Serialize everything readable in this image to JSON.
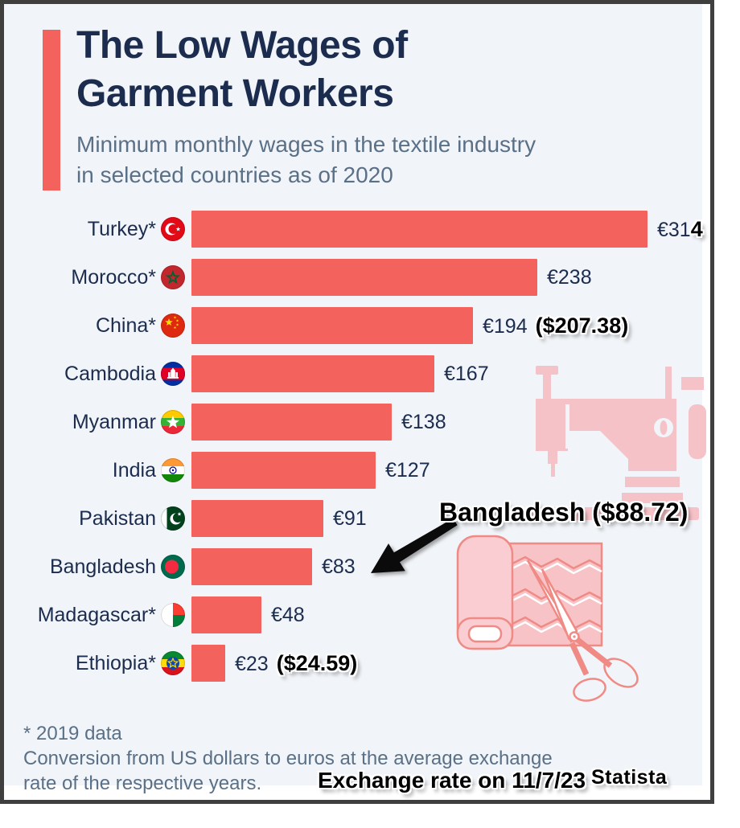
{
  "title": {
    "line1": "The Low Wages of",
    "line2": "Garment Workers"
  },
  "subtitle": {
    "line1": "Minimum monthly wages in the textile industry",
    "line2": "in selected countries as of 2020"
  },
  "chart_data": {
    "type": "bar",
    "orientation": "horizontal",
    "title": "The Low Wages of Garment Workers",
    "subtitle": "Minimum monthly wages in the textile industry in selected countries as of 2020",
    "unit": "EUR per month",
    "xlim": [
      0,
      314
    ],
    "grid": false,
    "legend": "none",
    "categories": [
      "Turkey*",
      "Morocco*",
      "China*",
      "Cambodia",
      "Myanmar",
      "India",
      "Pakistan",
      "Bangladesh",
      "Madagascar*",
      "Ethiopia*"
    ],
    "values": [
      314,
      238,
      194,
      167,
      138,
      127,
      91,
      83,
      48,
      23
    ],
    "rows": [
      {
        "country": "Turkey*",
        "flag": "turkey",
        "value": 314,
        "value_label": "€31",
        "value_bold_suffix": "4",
        "dollar_note": ""
      },
      {
        "country": "Morocco*",
        "flag": "morocco",
        "value": 238,
        "value_label": "€238",
        "value_bold_suffix": "",
        "dollar_note": ""
      },
      {
        "country": "China*",
        "flag": "china",
        "value": 194,
        "value_label": "€194",
        "value_bold_suffix": "",
        "dollar_note": "($207.38)"
      },
      {
        "country": "Cambodia",
        "flag": "cambodia",
        "value": 167,
        "value_label": "€167",
        "value_bold_suffix": "",
        "dollar_note": ""
      },
      {
        "country": "Myanmar",
        "flag": "myanmar",
        "value": 138,
        "value_label": "€138",
        "value_bold_suffix": "",
        "dollar_note": ""
      },
      {
        "country": "India",
        "flag": "india",
        "value": 127,
        "value_label": "€127",
        "value_bold_suffix": "",
        "dollar_note": ""
      },
      {
        "country": "Pakistan",
        "flag": "pakistan",
        "value": 91,
        "value_label": "€91",
        "value_bold_suffix": "",
        "dollar_note": ""
      },
      {
        "country": "Bangladesh",
        "flag": "bangladesh",
        "value": 83,
        "value_label": "€83",
        "value_bold_suffix": "",
        "dollar_note": ""
      },
      {
        "country": "Madagascar*",
        "flag": "madagascar",
        "value": 48,
        "value_label": "€48",
        "value_bold_suffix": "",
        "dollar_note": ""
      },
      {
        "country": "Ethiopia*",
        "flag": "ethiopia",
        "value": 23,
        "value_label": "€23",
        "value_bold_suffix": "",
        "dollar_note": "($24.59)"
      }
    ]
  },
  "annotations": {
    "bangladesh_note": "Bangladesh ($88.72)",
    "exchange_note": "Exchange rate on 11/7/23",
    "statista_label": "Statista"
  },
  "footer": {
    "line1": "* 2019 data",
    "line2": "Conversion from US dollars to euros at the average exchange",
    "line3": "rate of the respective years."
  },
  "icons": [
    "sewing-machine-icon",
    "fabric-scissors-icon",
    "annotation-arrow-icon",
    "flag-turkey-icon",
    "flag-morocco-icon",
    "flag-china-icon",
    "flag-cambodia-icon",
    "flag-myanmar-icon",
    "flag-india-icon",
    "flag-pakistan-icon",
    "flag-bangladesh-icon",
    "flag-madagascar-icon",
    "flag-ethiopia-icon"
  ],
  "colors": {
    "bar": "#f4625e",
    "accent": "#f4625e",
    "panel_bg": "#f1f4f8",
    "title_text": "#1b2c4e",
    "subtitle_text": "#5a7087",
    "footer_text": "#5a7087",
    "annotation_text": "#000000",
    "icon_pink": "#f5c2c7",
    "icon_outline": "#ef8a85",
    "frame_border": "#3f3f3f"
  }
}
